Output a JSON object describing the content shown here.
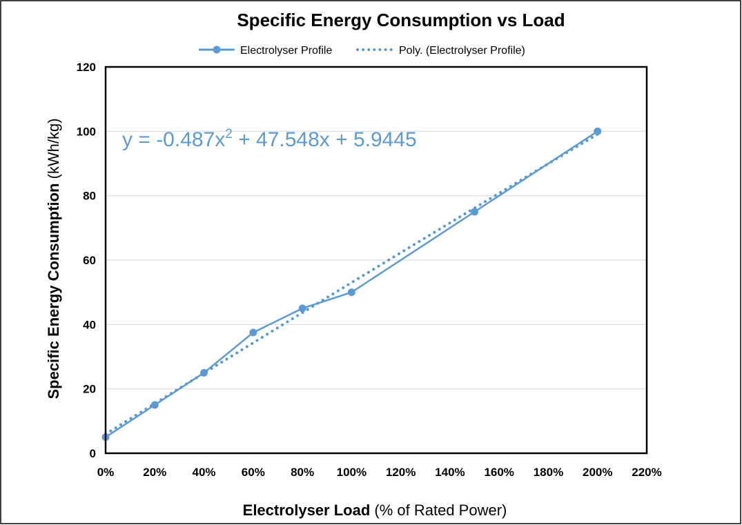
{
  "colors": {
    "series": "#5b9bd5",
    "grid": "#d9d9d9",
    "frame": "#000000"
  },
  "chart_data": {
    "type": "line",
    "title": "Specific Energy Consumption vs Load",
    "xlabel_bold": "Electrolyser Load",
    "xlabel_normal": " (% of Rated Power)",
    "ylabel_bold": "Specific Energy Consumption",
    "ylabel_normal": "  (kWh/kg)",
    "xlim": [
      0,
      2.2
    ],
    "ylim": [
      0,
      120
    ],
    "x_ticks": [
      0,
      0.2,
      0.4,
      0.6,
      0.8,
      1.0,
      1.2,
      1.4,
      1.6,
      1.8,
      2.0,
      2.2
    ],
    "x_tick_labels": [
      "0%",
      "20%",
      "40%",
      "60%",
      "80%",
      "100%",
      "120%",
      "140%",
      "160%",
      "180%",
      "200%",
      "220%"
    ],
    "y_ticks": [
      0,
      20,
      40,
      60,
      80,
      100,
      120
    ],
    "y_tick_labels": [
      "0",
      "20",
      "40",
      "60",
      "80",
      "100",
      "120"
    ],
    "grid": true,
    "legend_position": "top",
    "series": [
      {
        "name": "Electrolyser Profile",
        "style": "line-with-markers",
        "x": [
          0,
          0.2,
          0.4,
          0.6,
          0.8,
          1.0,
          1.5,
          2.0
        ],
        "y": [
          5,
          15,
          25,
          37.5,
          45,
          50,
          75,
          100
        ]
      }
    ],
    "trendline": {
      "name": "Poly. (Electrolyser Profile)",
      "style": "dotted",
      "coefficients": [
        -0.487,
        47.548,
        5.9445
      ],
      "equation_prefix": "y = -0.487x",
      "equation_sup": "2",
      "equation_suffix": " + 47.548x + 5.9445"
    }
  }
}
